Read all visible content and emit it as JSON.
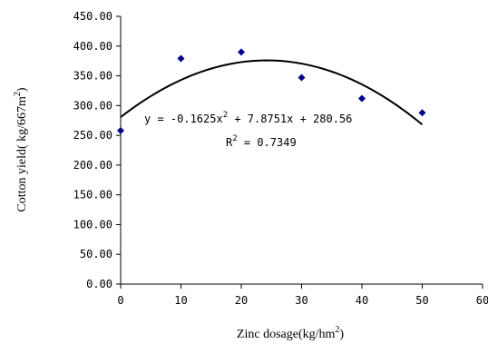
{
  "chart_data": {
    "type": "scatter",
    "xlabel": "Zinc dosage(kg/hm2)",
    "xlabel_text": "Zinc dosage(kg/hm",
    "xlabel_sup": "2",
    "xlabel_tail": ")",
    "ylabel_text": "Cotton yield( kg/667m",
    "ylabel_sup": "2",
    "ylabel_tail": ")",
    "xlim": [
      0,
      60
    ],
    "ylim": [
      0,
      450
    ],
    "x_ticks": [
      "0",
      "10",
      "20",
      "30",
      "40",
      "50",
      "60"
    ],
    "y_ticks": [
      "0.00",
      "50.00",
      "100.00",
      "150.00",
      "200.00",
      "250.00",
      "300.00",
      "350.00",
      "400.00",
      "450.00"
    ],
    "series": [
      {
        "points": [
          {
            "x": 0,
            "y": 258
          },
          {
            "x": 10,
            "y": 379
          },
          {
            "x": 20,
            "y": 390
          },
          {
            "x": 30,
            "y": 347
          },
          {
            "x": 40,
            "y": 312
          },
          {
            "x": 50,
            "y": 288
          }
        ]
      }
    ],
    "trendline": {
      "type": "polynomial",
      "a": -0.1625,
      "b": 7.8751,
      "c": 280.56,
      "x_range": [
        0,
        50
      ]
    },
    "annotations": {
      "equation_parts": [
        "y = -0.1625x",
        "2",
        " + 7.8751x + 280.56"
      ],
      "r2_parts": [
        "R",
        "2",
        " = 0.7349"
      ]
    },
    "grid": false,
    "legend": "none",
    "colors": {
      "marker": "#00008b",
      "trendline": "#000000",
      "axis": "#000000"
    }
  }
}
